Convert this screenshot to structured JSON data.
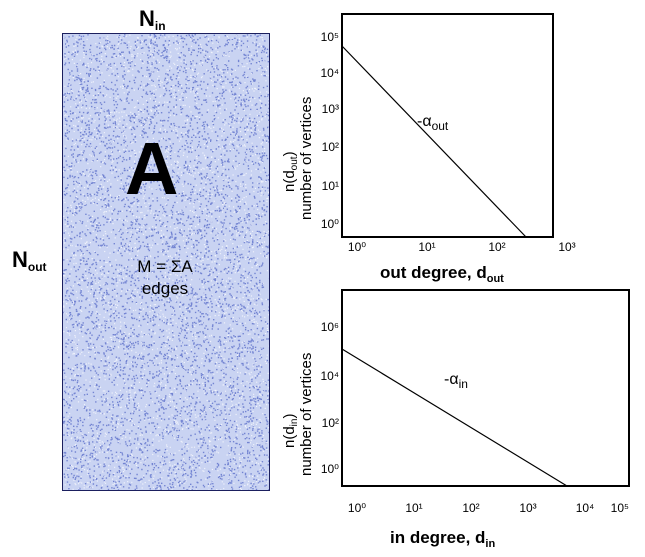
{
  "matrix": {
    "col_label": "N",
    "col_label_sub": "in",
    "row_label": "N",
    "row_label_sub": "out",
    "name": "A",
    "edges_line1": "M = ΣA",
    "edges_line2": "edges",
    "fill_color": "#c9d3f2",
    "dot_color": "#2c44b8"
  },
  "plot_out": {
    "xlabel": "out degree, d",
    "xlabel_sub": "out",
    "ylabel_line1": "n(d",
    "ylabel_line1_sub": "out",
    "ylabel_line1_end": ")",
    "ylabel_line2": "number of vertices",
    "slope_label": "-α",
    "slope_label_sub": "out",
    "x_ticks": [
      "10⁰",
      "10¹",
      "10²",
      "10³"
    ],
    "y_ticks": [
      "10⁵",
      "10⁴",
      "10³",
      "10²",
      "10¹",
      "10⁰"
    ]
  },
  "plot_in": {
    "xlabel": "in degree, d",
    "xlabel_sub": "in",
    "ylabel_line1": "n(d",
    "ylabel_line1_sub": "in",
    "ylabel_line1_end": ")",
    "ylabel_line2": "number of vertices",
    "slope_label": "-α",
    "slope_label_sub": "in",
    "x_ticks": [
      "10⁰",
      "10¹",
      "10²",
      "10³",
      "10⁴",
      "10⁵"
    ],
    "y_ticks": [
      "10⁶",
      "10⁴",
      "10²",
      "10⁰"
    ]
  }
}
